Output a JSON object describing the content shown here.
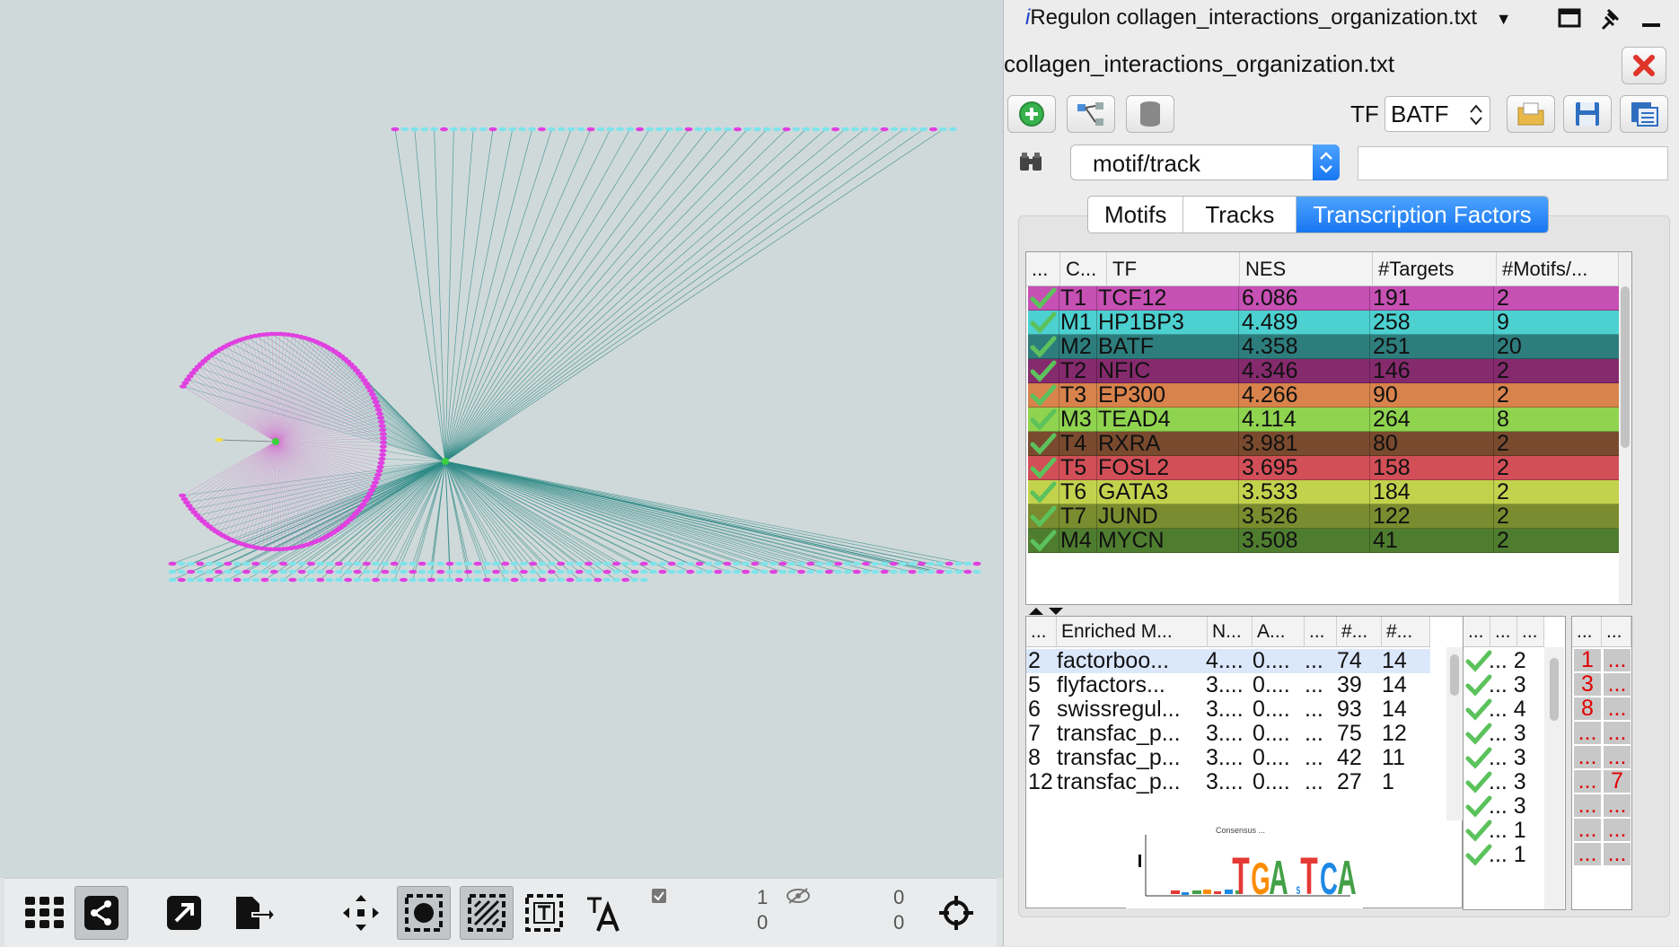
{
  "panel": {
    "header_prefix": "i",
    "header_title": "Regulon collagen_interactions_organization.txt",
    "dropdown_arrow": "▼",
    "file_title": "collagen_interactions_organization.txt",
    "tf_label": "TF",
    "tf_value": "BATF",
    "search_mode": "motif/track",
    "search_value": "",
    "tabs": [
      "Motifs",
      "Tracks",
      "Transcription Factors"
    ],
    "selected_tab": "Transcription Factors"
  },
  "tf_table": {
    "headers": [
      "...",
      "C...",
      "TF",
      "NES",
      "#Targets",
      "#Motifs/..."
    ],
    "rows": [
      {
        "cluster": "T1",
        "tf": "TCF12",
        "nes": "6.086",
        "targets": "191",
        "motifs": "2",
        "color": "#c650b3"
      },
      {
        "cluster": "M1",
        "tf": "HP1BP3",
        "nes": "4.489",
        "targets": "258",
        "motifs": "9",
        "color": "#4cd0d0"
      },
      {
        "cluster": "M2",
        "tf": "BATF",
        "nes": "4.358",
        "targets": "251",
        "motifs": "20",
        "color": "#2e7d7d"
      },
      {
        "cluster": "T2",
        "tf": "NFIC",
        "nes": "4.346",
        "targets": "146",
        "motifs": "2",
        "color": "#862a6e"
      },
      {
        "cluster": "T3",
        "tf": "EP300",
        "nes": "4.266",
        "targets": "90",
        "motifs": "2",
        "color": "#d8834c"
      },
      {
        "cluster": "M3",
        "tf": "TEAD4",
        "nes": "4.114",
        "targets": "264",
        "motifs": "8",
        "color": "#8fd34f"
      },
      {
        "cluster": "T4",
        "tf": "RXRA",
        "nes": "3.981",
        "targets": "80",
        "motifs": "2",
        "color": "#7a4a2e"
      },
      {
        "cluster": "T5",
        "tf": "FOSL2",
        "nes": "3.695",
        "targets": "158",
        "motifs": "2",
        "color": "#d24f57"
      },
      {
        "cluster": "T6",
        "tf": "GATA3",
        "nes": "3.533",
        "targets": "184",
        "motifs": "2",
        "color": "#c3d24d"
      },
      {
        "cluster": "T7",
        "tf": "JUND",
        "nes": "3.526",
        "targets": "122",
        "motifs": "2",
        "color": "#7a8c2f"
      },
      {
        "cluster": "M4",
        "tf": "MYCN",
        "nes": "3.508",
        "targets": "41",
        "motifs": "2",
        "color": "#4f7d2f"
      }
    ]
  },
  "motif_table": {
    "headers": [
      "...",
      "Enriched M...",
      "N...",
      "A...",
      "...",
      "#...",
      "#..."
    ],
    "rows": [
      {
        "rank": "2",
        "name": "factorboo...",
        "nes": "4....",
        "auc": "0....",
        "dots": "...",
        "a": "74",
        "b": "14",
        "selected": true
      },
      {
        "rank": "5",
        "name": "flyfactors...",
        "nes": "3....",
        "auc": "0....",
        "dots": "...",
        "a": "39",
        "b": "14",
        "selected": false
      },
      {
        "rank": "6",
        "name": "swissregul...",
        "nes": "3....",
        "auc": "0....",
        "dots": "...",
        "a": "93",
        "b": "14",
        "selected": false
      },
      {
        "rank": "7",
        "name": "transfac_p...",
        "nes": "3....",
        "auc": "0....",
        "dots": "...",
        "a": "75",
        "b": "12",
        "selected": false
      },
      {
        "rank": "8",
        "name": "transfac_p...",
        "nes": "3....",
        "auc": "0....",
        "dots": "...",
        "a": "42",
        "b": "11",
        "selected": false
      },
      {
        "rank": "12",
        "name": "transfac_p...",
        "nes": "3....",
        "auc": "0....",
        "dots": "...",
        "a": "27",
        "b": "1",
        "selected": false
      }
    ],
    "logo_caption": "Consensus ...",
    "logo_letters": "TGAsTCA"
  },
  "check_table": {
    "headers": [
      "...",
      "...",
      "..."
    ],
    "rows": [
      "... 2",
      "... 3",
      "... 4",
      "... 3",
      "... 3",
      "... 3",
      "... 3",
      "... 1",
      "... 1"
    ]
  },
  "red_table": {
    "headers": [
      "...",
      "..."
    ],
    "rows": [
      [
        "1",
        "..."
      ],
      [
        "3",
        "..."
      ],
      [
        "8",
        "..."
      ],
      [
        "...",
        "..."
      ],
      [
        "...",
        "..."
      ],
      [
        "...",
        "7"
      ],
      [
        "...",
        "..."
      ],
      [
        "...",
        "..."
      ],
      [
        "...",
        "..."
      ]
    ]
  },
  "toolbar": {
    "selected_nodes": "1",
    "selected_edges": "0",
    "hidden_nodes": "0",
    "hidden_edges": "0"
  },
  "colors": {
    "accent": "#1877f2",
    "node_pink": "#e040e0",
    "node_cyan": "#7fe3ea",
    "edge_teal": "#2e8a86",
    "canvas_bg": "#d0d9da"
  }
}
